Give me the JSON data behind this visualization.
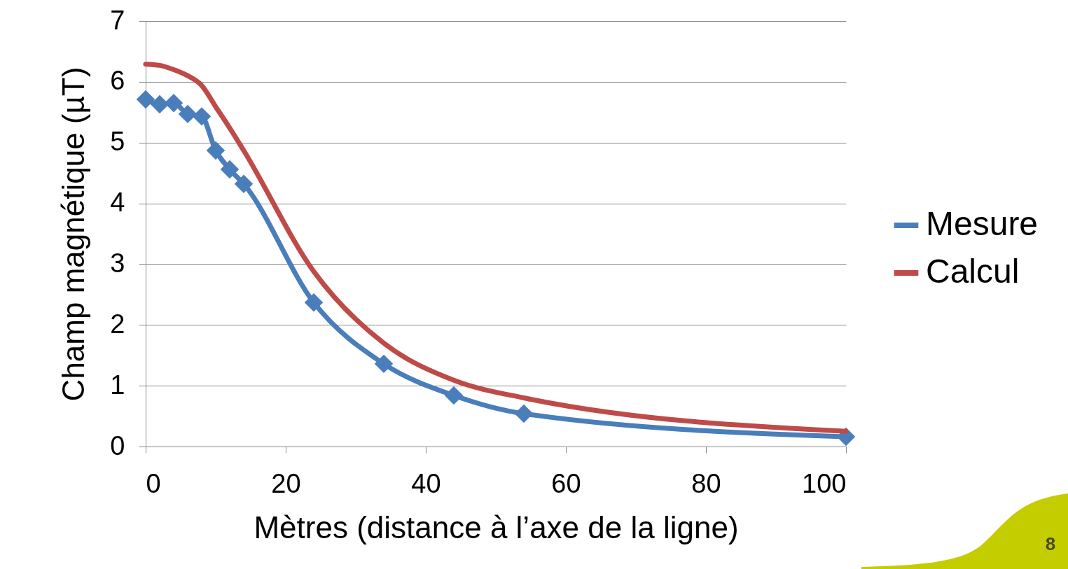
{
  "chart_data": {
    "type": "line",
    "xlabel": "Mètres (distance à l’axe de la ligne)",
    "ylabel": "Champ magnétique (µT)",
    "x": [
      0,
      2,
      4,
      6,
      8,
      10,
      12,
      14,
      24,
      34,
      44,
      54,
      100
    ],
    "series": [
      {
        "name": "Mesure",
        "color": "#4a7ebb",
        "marker": "diamond",
        "values": [
          5.71,
          5.63,
          5.65,
          5.47,
          5.43,
          4.87,
          4.56,
          4.32,
          2.37,
          1.36,
          0.84,
          0.54,
          0.16
        ]
      },
      {
        "name": "Calcul",
        "color": "#be4b48",
        "marker": "none",
        "values": [
          6.29,
          6.27,
          6.2,
          6.1,
          5.94,
          5.59,
          5.24,
          4.87,
          2.88,
          1.7,
          1.09,
          0.8,
          0.25
        ]
      }
    ],
    "xlim": [
      0,
      100
    ],
    "xticks": [
      0,
      20,
      40,
      60,
      80,
      100
    ],
    "ylim": [
      0,
      7
    ],
    "yticks": [
      0,
      1,
      2,
      3,
      4,
      5,
      6,
      7
    ],
    "grid": "y",
    "legend": "right",
    "line_style": "solid",
    "annotations": [
      "8"
    ]
  }
}
